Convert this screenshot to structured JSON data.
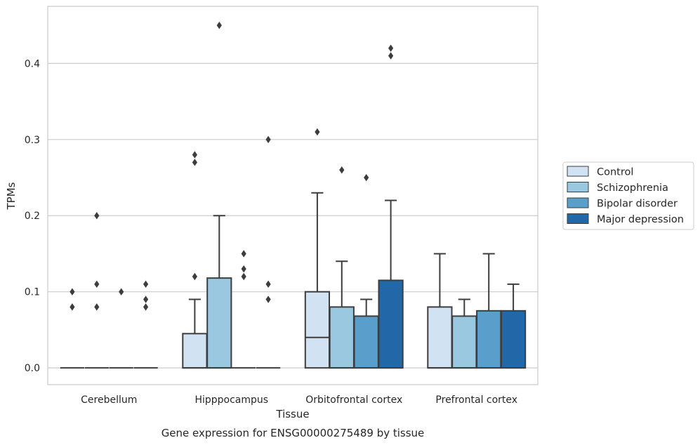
{
  "chart_data": {
    "type": "box",
    "xlabel": "Tissue",
    "ylabel": "TPMs",
    "caption": "Gene expression for ENSG00000275489 by tissue",
    "categories": [
      "Cerebellum",
      "Hipppocampus",
      "Orbitofrontal cortex",
      "Prefrontal cortex"
    ],
    "ylim": [
      -0.022,
      0.475
    ],
    "yticks": [
      0.0,
      0.1,
      0.2,
      0.3,
      0.4
    ],
    "ytick_labels": [
      "0.0",
      "0.1",
      "0.2",
      "0.3",
      "0.4"
    ],
    "grid": "horizontal",
    "legend_position": "right",
    "series": [
      {
        "name": "Control",
        "color": "#d1e2f2",
        "boxes": [
          {
            "q1": 0,
            "median": 0,
            "q3": 0,
            "whisker_low": 0,
            "whisker_high": 0,
            "outliers": [
              0.08,
              0.1
            ]
          },
          {
            "q1": 0,
            "median": 0,
            "q3": 0.045,
            "whisker_low": 0,
            "whisker_high": 0.09,
            "outliers": [
              0.12,
              0.27,
              0.28
            ]
          },
          {
            "q1": 0,
            "median": 0.04,
            "q3": 0.1,
            "whisker_low": 0,
            "whisker_high": 0.23,
            "outliers": [
              0.31
            ]
          },
          {
            "q1": 0,
            "median": 0,
            "q3": 0.08,
            "whisker_low": 0,
            "whisker_high": 0.15,
            "outliers": []
          }
        ]
      },
      {
        "name": "Schizophrenia",
        "color": "#9ac8e0",
        "boxes": [
          {
            "q1": 0,
            "median": 0,
            "q3": 0,
            "whisker_low": 0,
            "whisker_high": 0,
            "outliers": [
              0.08,
              0.11,
              0.2
            ]
          },
          {
            "q1": 0,
            "median": 0,
            "q3": 0.118,
            "whisker_low": 0,
            "whisker_high": 0.2,
            "outliers": [
              0.45
            ]
          },
          {
            "q1": 0,
            "median": 0,
            "q3": 0.08,
            "whisker_low": 0,
            "whisker_high": 0.14,
            "outliers": [
              0.26
            ]
          },
          {
            "q1": 0,
            "median": 0,
            "q3": 0.068,
            "whisker_low": 0,
            "whisker_high": 0.09,
            "outliers": []
          }
        ]
      },
      {
        "name": "Bipolar disorder",
        "color": "#5a9ecb",
        "boxes": [
          {
            "q1": 0,
            "median": 0,
            "q3": 0,
            "whisker_low": 0,
            "whisker_high": 0,
            "outliers": [
              0.1
            ]
          },
          {
            "q1": 0,
            "median": 0,
            "q3": 0,
            "whisker_low": 0,
            "whisker_high": 0,
            "outliers": [
              0.12,
              0.13,
              0.15
            ]
          },
          {
            "q1": 0,
            "median": 0,
            "q3": 0.068,
            "whisker_low": 0,
            "whisker_high": 0.09,
            "outliers": [
              0.25
            ]
          },
          {
            "q1": 0,
            "median": 0,
            "q3": 0.075,
            "whisker_low": 0,
            "whisker_high": 0.15,
            "outliers": []
          }
        ]
      },
      {
        "name": "Major depression",
        "color": "#2268a9",
        "boxes": [
          {
            "q1": 0,
            "median": 0,
            "q3": 0,
            "whisker_low": 0,
            "whisker_high": 0,
            "outliers": [
              0.08,
              0.09,
              0.11
            ]
          },
          {
            "q1": 0,
            "median": 0,
            "q3": 0,
            "whisker_low": 0,
            "whisker_high": 0,
            "outliers": [
              0.09,
              0.11,
              0.3
            ]
          },
          {
            "q1": 0,
            "median": 0,
            "q3": 0.115,
            "whisker_low": 0,
            "whisker_high": 0.22,
            "outliers": [
              0.41,
              0.42
            ]
          },
          {
            "q1": 0,
            "median": 0,
            "q3": 0.075,
            "whisker_low": 0,
            "whisker_high": 0.11,
            "outliers": []
          }
        ]
      }
    ]
  }
}
